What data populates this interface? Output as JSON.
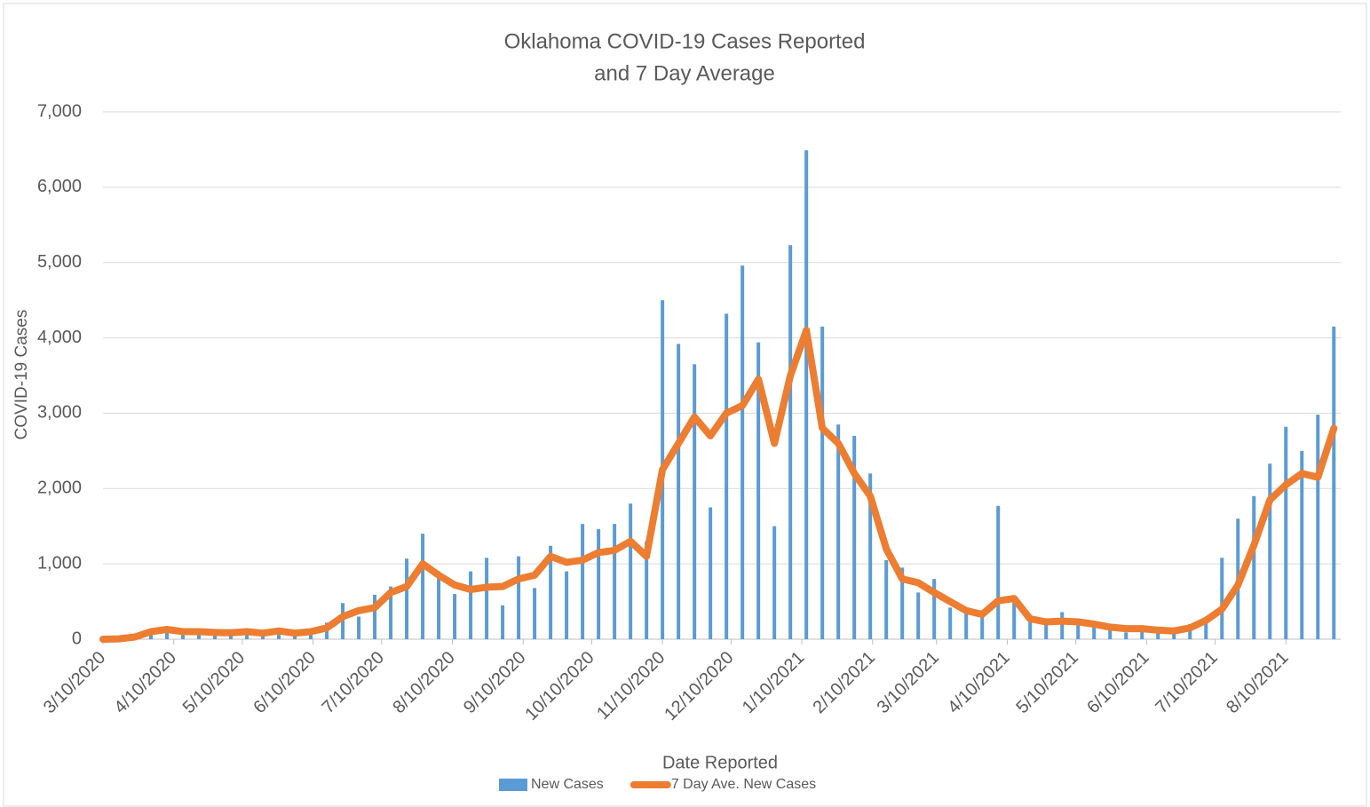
{
  "chart_data": {
    "type": "bar",
    "title": [
      "Oklahoma COVID-19 Cases Reported",
      "and 7 Day Average"
    ],
    "x_label": "Date Reported",
    "y_label": "COVID-19 Cases",
    "x": [
      "3/10/2020",
      "3/17/2020",
      "3/24/2020",
      "3/31/2020",
      "4/7/2020",
      "4/14/2020",
      "4/21/2020",
      "4/28/2020",
      "5/5/2020",
      "5/12/2020",
      "5/19/2020",
      "5/26/2020",
      "6/2/2020",
      "6/9/2020",
      "6/16/2020",
      "6/23/2020",
      "6/30/2020",
      "7/7/2020",
      "7/14/2020",
      "7/21/2020",
      "7/28/2020",
      "8/4/2020",
      "8/11/2020",
      "8/18/2020",
      "8/25/2020",
      "9/1/2020",
      "9/8/2020",
      "9/15/2020",
      "9/22/2020",
      "9/29/2020",
      "10/6/2020",
      "10/13/2020",
      "10/20/2020",
      "10/27/2020",
      "11/3/2020",
      "11/10/2020",
      "11/17/2020",
      "11/24/2020",
      "12/1/2020",
      "12/8/2020",
      "12/15/2020",
      "12/22/2020",
      "12/29/2020",
      "1/5/2021",
      "1/12/2021",
      "1/19/2021",
      "1/26/2021",
      "2/2/2021",
      "2/9/2021",
      "2/16/2021",
      "2/23/2021",
      "3/2/2021",
      "3/9/2021",
      "3/16/2021",
      "3/23/2021",
      "3/30/2021",
      "4/6/2021",
      "4/13/2021",
      "4/20/2021",
      "4/27/2021",
      "5/4/2021",
      "5/11/2021",
      "5/18/2021",
      "5/25/2021",
      "6/1/2021",
      "6/8/2021",
      "6/15/2021",
      "6/22/2021",
      "6/29/2021",
      "7/6/2021",
      "7/13/2021",
      "7/20/2021",
      "7/27/2021",
      "8/3/2021",
      "8/10/2021",
      "8/17/2021",
      "8/24/2021",
      "8/31/2021"
    ],
    "series": [
      {
        "name": "New Cases",
        "type": "bar",
        "color": "#5B9BD5",
        "values": [
          2,
          17,
          25,
          110,
          160,
          90,
          120,
          80,
          70,
          110,
          95,
          130,
          70,
          90,
          220,
          480,
          300,
          590,
          700,
          1070,
          1400,
          900,
          600,
          900,
          1080,
          450,
          1100,
          680,
          1240,
          900,
          1530,
          1460,
          1530,
          1800,
          1300,
          4500,
          3920,
          3650,
          1750,
          4320,
          4960,
          3940,
          1500,
          5230,
          6490,
          4150,
          2850,
          2700,
          2200,
          1050,
          950,
          620,
          800,
          420,
          340,
          290,
          1770,
          500,
          300,
          260,
          360,
          210,
          180,
          120,
          90,
          160,
          130,
          100,
          200,
          290,
          1080,
          1600,
          1900,
          2330,
          2820,
          2500,
          2980,
          4150
        ]
      },
      {
        "name": "7 Day Ave. New Cases",
        "type": "line",
        "color": "#ED7D31",
        "values": [
          0,
          5,
          30,
          100,
          130,
          100,
          100,
          90,
          85,
          100,
          80,
          110,
          80,
          100,
          150,
          300,
          380,
          420,
          620,
          700,
          1000,
          850,
          720,
          660,
          690,
          700,
          800,
          850,
          1100,
          1020,
          1050,
          1150,
          1180,
          1300,
          1100,
          2250,
          2600,
          2950,
          2700,
          3000,
          3100,
          3450,
          2600,
          3500,
          4100,
          2800,
          2600,
          2200,
          1900,
          1200,
          800,
          750,
          620,
          500,
          380,
          330,
          510,
          540,
          270,
          230,
          240,
          230,
          200,
          160,
          140,
          140,
          120,
          110,
          150,
          250,
          400,
          720,
          1250,
          1850,
          2050,
          2200,
          2150,
          2800
        ]
      }
    ],
    "xlim": [
      "3/10/2020",
      "9/3/2021"
    ],
    "xticks": [
      "3/10/2020",
      "4/10/2020",
      "5/10/2020",
      "6/10/2020",
      "7/10/2020",
      "8/10/2020",
      "9/10/2020",
      "10/10/2020",
      "11/10/2020",
      "12/10/2020",
      "1/10/2021",
      "2/10/2021",
      "3/10/2021",
      "4/10/2021",
      "5/10/2021",
      "6/10/2021",
      "7/10/2021",
      "8/10/2021"
    ],
    "ylim": [
      0,
      7000
    ],
    "yticks": [
      0,
      {
        "value": 1000,
        "label": "1,000"
      },
      {
        "value": 2000,
        "label": "2,000"
      },
      {
        "value": 3000,
        "label": "3,000"
      },
      {
        "value": 4000,
        "label": "4,000"
      },
      {
        "value": 5000,
        "label": "5,000"
      },
      {
        "value": 6000,
        "label": "6,000"
      },
      {
        "value": 7000,
        "label": "7,000"
      }
    ],
    "grid": true,
    "legend": "bottom"
  }
}
